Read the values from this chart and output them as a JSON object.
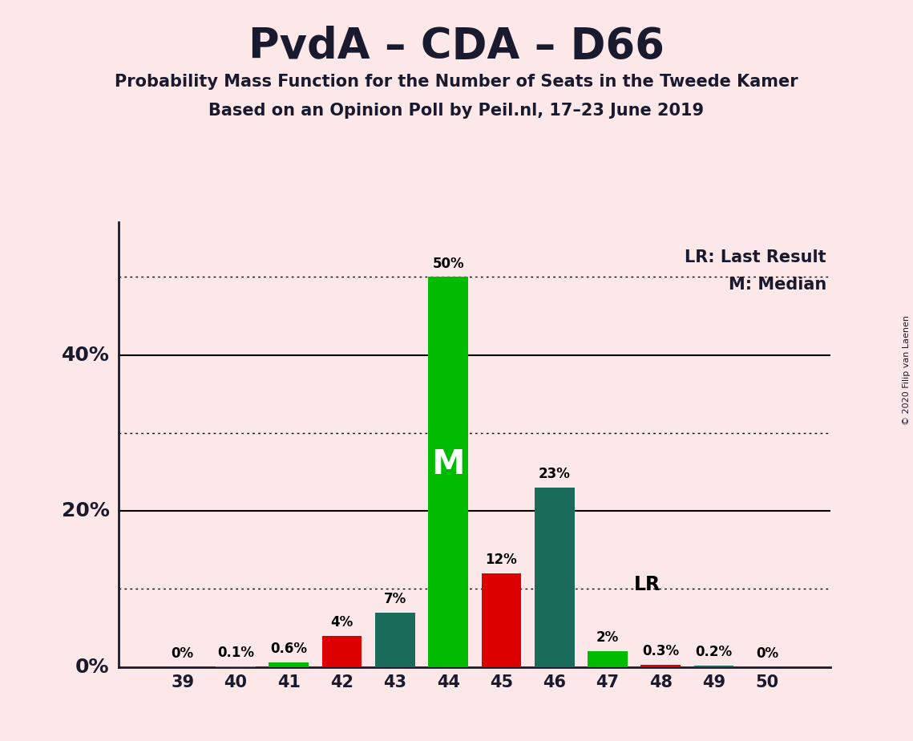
{
  "title": "PvdA – CDA – D66",
  "subtitle1": "Probability Mass Function for the Number of Seats in the Tweede Kamer",
  "subtitle2": "Based on an Opinion Poll by Peil.nl, 17–23 June 2019",
  "copyright": "© 2020 Filip van Laenen",
  "seats": [
    39,
    40,
    41,
    42,
    43,
    44,
    45,
    46,
    47,
    48,
    49,
    50
  ],
  "probabilities": [
    0.0,
    0.1,
    0.6,
    4.0,
    7.0,
    50.0,
    12.0,
    23.0,
    2.0,
    0.3,
    0.2,
    0.0
  ],
  "bar_colors": [
    "#00bb00",
    "#00bb00",
    "#00bb00",
    "#dd0000",
    "#1a6b5a",
    "#00bb00",
    "#dd0000",
    "#1a6b5a",
    "#00bb00",
    "#dd0000",
    "#1a6b5a",
    "#00bb00"
  ],
  "median_seat": 44,
  "last_result_seat": 47,
  "background_color": "#fce8e8",
  "legend_lr": "LR: Last Result",
  "legend_m": "M: Median",
  "ytick_solid": [
    20,
    40
  ],
  "ytick_dotted": [
    10,
    30,
    50
  ],
  "ytick_labels_pos": [
    0,
    20,
    40
  ],
  "ytick_labels": [
    "0%",
    "20%",
    "40%"
  ],
  "ylim": [
    0,
    57
  ],
  "xlim_min": 37.8,
  "xlim_max": 51.2,
  "bar_width": 0.75
}
